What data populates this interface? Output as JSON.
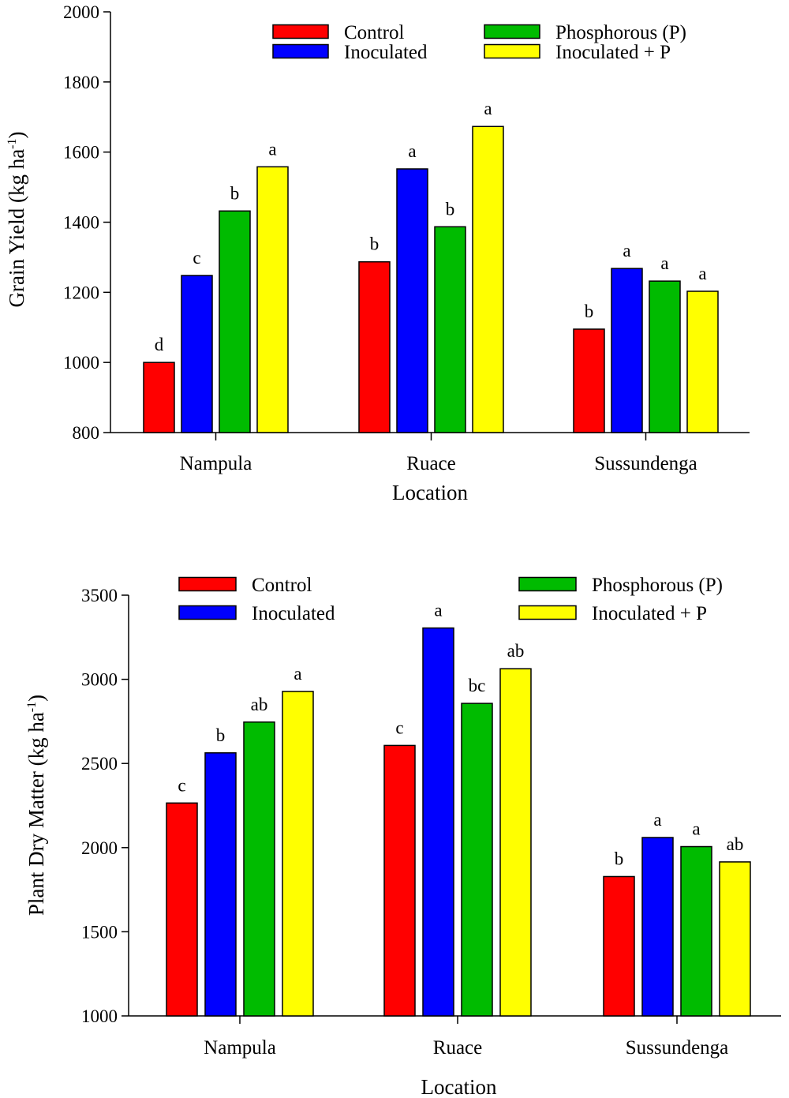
{
  "chart_data": [
    {
      "type": "bar",
      "title": "",
      "xlabel": "Location",
      "ylabel": "Grain Yield (kg ha",
      "ylabel_superscript": "-1",
      "ylabel_suffix": ")",
      "ylim": [
        800,
        2000
      ],
      "yticks": [
        800,
        1000,
        1200,
        1400,
        1600,
        1800,
        2000
      ],
      "categories": [
        "Nampula",
        "Ruace",
        "Sussundenga"
      ],
      "series": [
        {
          "name": "Control",
          "color": "#ff0000",
          "values": [
            1000,
            1287,
            1095
          ],
          "letters": [
            "d",
            "b",
            "b"
          ]
        },
        {
          "name": "Inoculated",
          "color": "#0000ff",
          "values": [
            1248,
            1552,
            1268
          ],
          "letters": [
            "c",
            "a",
            "a"
          ]
        },
        {
          "name": "Phosphorous (P)",
          "color": "#00bb00",
          "values": [
            1432,
            1387,
            1232
          ],
          "letters": [
            "b",
            "b",
            "a"
          ]
        },
        {
          "name": "Inoculated + P",
          "color": "#ffff00",
          "values": [
            1558,
            1673,
            1203
          ],
          "letters": [
            "a",
            "a",
            "a"
          ]
        }
      ]
    },
    {
      "type": "bar",
      "title": "",
      "xlabel": "Location",
      "ylabel": "Plant Dry Matter (kg ha",
      "ylabel_superscript": "-1",
      "ylabel_suffix": ")",
      "ylim": [
        1000,
        3500
      ],
      "yticks": [
        1000,
        1500,
        2000,
        2500,
        3000,
        3500
      ],
      "categories": [
        "Nampula",
        "Ruace",
        "Sussundenga"
      ],
      "series": [
        {
          "name": "Control",
          "color": "#ff0000",
          "values": [
            2265,
            2607,
            1828
          ],
          "letters": [
            "c",
            "c",
            "b"
          ]
        },
        {
          "name": "Inoculated",
          "color": "#0000ff",
          "values": [
            2563,
            3305,
            2060
          ],
          "letters": [
            "b",
            "a",
            "a"
          ]
        },
        {
          "name": "Phosphorous (P)",
          "color": "#00bb00",
          "values": [
            2746,
            2857,
            2006
          ],
          "letters": [
            "ab",
            "bc",
            "a"
          ]
        },
        {
          "name": "Inoculated + P",
          "color": "#ffff00",
          "values": [
            2928,
            3063,
            1915
          ],
          "letters": [
            "a",
            "ab",
            "ab"
          ]
        }
      ]
    }
  ]
}
